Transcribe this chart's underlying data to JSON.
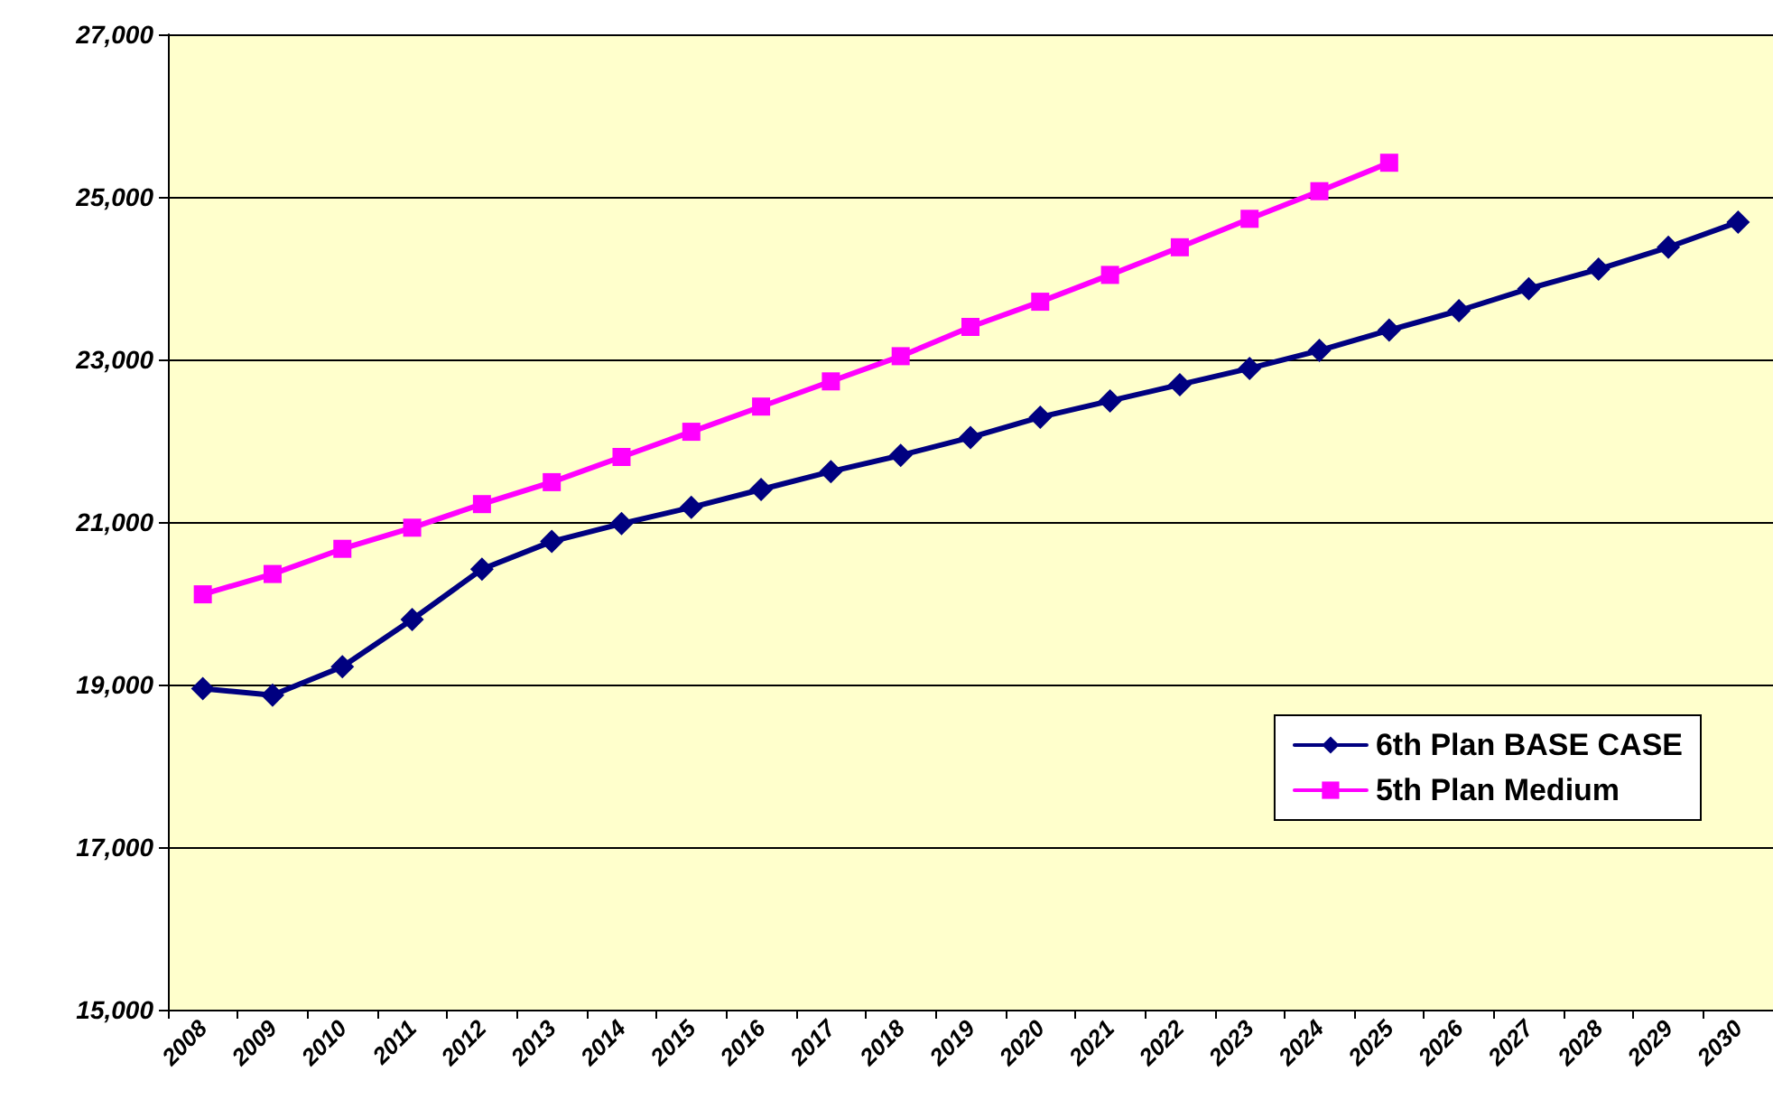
{
  "chart_data": {
    "type": "line",
    "categories": [
      "2008",
      "2009",
      "2010",
      "2011",
      "2012",
      "2013",
      "2014",
      "2015",
      "2016",
      "2017",
      "2018",
      "2019",
      "2020",
      "2021",
      "2022",
      "2023",
      "2024",
      "2025",
      "2026",
      "2027",
      "2028",
      "2029",
      "2030"
    ],
    "series": [
      {
        "name": "6th Plan BASE CASE",
        "color": "#000080",
        "marker": "diamond",
        "values": [
          18950,
          18870,
          19220,
          19800,
          20420,
          20760,
          20980,
          21180,
          21400,
          21620,
          21820,
          22040,
          22290,
          22490,
          22690,
          22890,
          23110,
          23360,
          23600,
          23870,
          24110,
          24380,
          24690
        ]
      },
      {
        "name": "5th Plan Medium",
        "color": "#ff00ff",
        "marker": "square",
        "values": [
          20110,
          20360,
          20670,
          20930,
          21220,
          21490,
          21800,
          22110,
          22420,
          22730,
          23040,
          23400,
          23710,
          24040,
          24380,
          24730,
          25070,
          25420,
          null,
          null,
          null,
          null,
          null
        ]
      }
    ],
    "ylim": [
      15000,
      27000
    ],
    "yticks": [
      {
        "value": 15000,
        "label": "15,000"
      },
      {
        "value": 17000,
        "label": "17,000"
      },
      {
        "value": 19000,
        "label": "19,000"
      },
      {
        "value": 21000,
        "label": "21,000"
      },
      {
        "value": 23000,
        "label": "23,000"
      },
      {
        "value": 25000,
        "label": "25,000"
      },
      {
        "value": 27000,
        "label": "27,000"
      }
    ],
    "grid": "y",
    "legend": "bottom right",
    "line_style": "solid"
  }
}
